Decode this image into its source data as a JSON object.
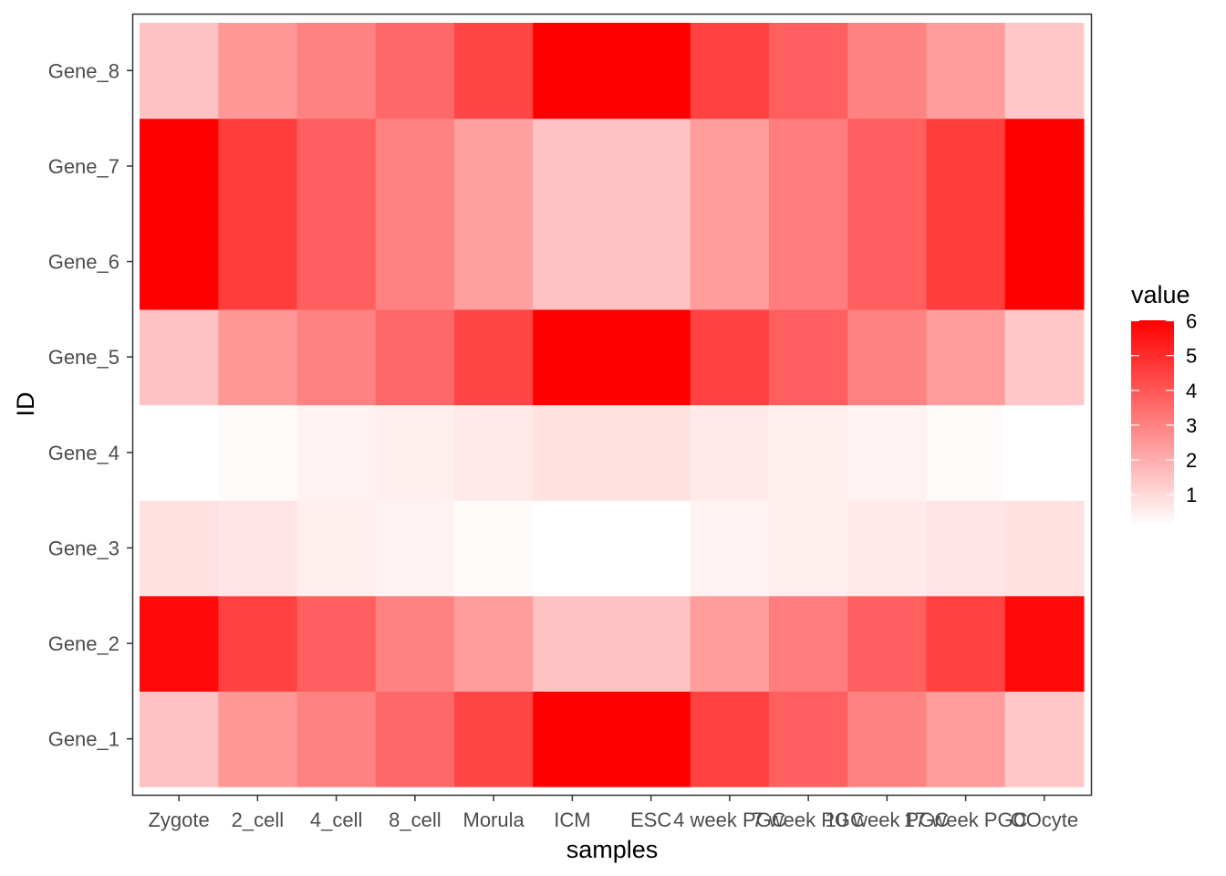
{
  "chart_data": {
    "type": "heatmap",
    "title": "",
    "xlabel": "samples",
    "ylabel": "ID",
    "x_categories": [
      "Zygote",
      "2_cell",
      "4_cell",
      "8_cell",
      "Morula",
      "ICM",
      "ESC",
      "4 week PGC",
      "7 week PGC",
      "10 week PGC",
      "17 week PGC",
      "OOcyte"
    ],
    "y_categories": [
      "Gene_1",
      "Gene_2",
      "Gene_3",
      "Gene_4",
      "Gene_5",
      "Gene_6",
      "Gene_7",
      "Gene_8"
    ],
    "rows": [
      {
        "gene": "Gene_1",
        "values": [
          1.5,
          2.5,
          3.0,
          3.6,
          4.4,
          6.0,
          6.0,
          4.5,
          3.8,
          3.0,
          2.4,
          1.4
        ]
      },
      {
        "gene": "Gene_2",
        "values": [
          5.8,
          4.5,
          3.8,
          3.0,
          2.4,
          1.5,
          1.5,
          2.4,
          3.1,
          3.8,
          4.5,
          5.8
        ]
      },
      {
        "gene": "Gene_3",
        "values": [
          0.8,
          0.7,
          0.5,
          0.4,
          0.2,
          0.1,
          0.1,
          0.4,
          0.5,
          0.6,
          0.7,
          0.8
        ]
      },
      {
        "gene": "Gene_4",
        "values": [
          0.1,
          0.2,
          0.4,
          0.5,
          0.6,
          0.8,
          0.8,
          0.6,
          0.5,
          0.4,
          0.2,
          0.1
        ]
      },
      {
        "gene": "Gene_5",
        "values": [
          1.5,
          2.5,
          3.0,
          3.6,
          4.4,
          6.0,
          6.0,
          4.5,
          3.8,
          3.0,
          2.4,
          1.4
        ]
      },
      {
        "gene": "Gene_6",
        "values": [
          6.0,
          4.6,
          3.8,
          3.0,
          2.3,
          1.5,
          1.5,
          2.4,
          3.1,
          3.8,
          4.6,
          6.0
        ]
      },
      {
        "gene": "Gene_7",
        "values": [
          6.0,
          4.6,
          3.8,
          3.0,
          2.3,
          1.5,
          1.5,
          2.4,
          3.1,
          3.8,
          4.6,
          6.0
        ]
      },
      {
        "gene": "Gene_8",
        "values": [
          1.5,
          2.5,
          3.0,
          3.6,
          4.4,
          6.0,
          6.0,
          4.5,
          3.8,
          3.0,
          2.4,
          1.4
        ]
      }
    ],
    "color_scale": {
      "low": "#ffffff",
      "high": "#ff0000",
      "min": 0.1,
      "max": 6.0
    },
    "legend": {
      "title": "value",
      "ticks": [
        1,
        2,
        3,
        4,
        5,
        6
      ],
      "placement": "right"
    },
    "grid": false
  }
}
